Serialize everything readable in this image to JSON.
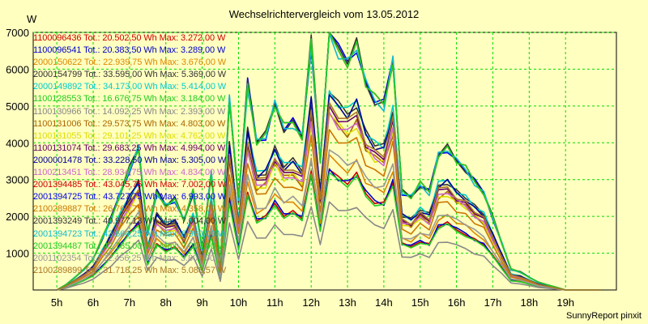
{
  "chart_data": {
    "type": "line",
    "title": "Wechselrichtervergleich vom 13.05.2012",
    "ylabel": "W",
    "xlabel": "",
    "footer": "SunnyReport pinxit",
    "ylim": [
      0,
      7000
    ],
    "y_ticks": [
      1000,
      2000,
      3000,
      4000,
      5000,
      6000,
      7000
    ],
    "y_tick_labels": [
      "1000",
      "2000",
      "3000",
      "4000",
      "5000",
      "6000",
      "7000"
    ],
    "x_range_hours": [
      4.35,
      20.4
    ],
    "x_tick_hours": [
      5,
      6,
      7,
      8,
      9,
      10,
      11,
      12,
      13,
      14,
      15,
      16,
      17,
      18,
      19
    ],
    "x_tick_labels": [
      "5h",
      "6h",
      "7h",
      "8h",
      "9h",
      "10h",
      "11h",
      "12h",
      "13h",
      "14h",
      "15h",
      "16h",
      "17h",
      "18h",
      "19h"
    ],
    "grid": true,
    "legend_position": "top-left",
    "x": [
      5.0,
      5.25,
      5.5,
      5.75,
      6.0,
      6.25,
      6.5,
      6.75,
      7.0,
      7.25,
      7.5,
      7.75,
      8.0,
      8.25,
      8.5,
      8.75,
      9.0,
      9.25,
      9.5,
      9.75,
      10.0,
      10.25,
      10.5,
      10.75,
      11.0,
      11.25,
      11.5,
      11.75,
      12.0,
      12.25,
      12.5,
      12.75,
      13.0,
      13.25,
      13.5,
      13.75,
      14.0,
      14.25,
      14.5,
      14.75,
      15.0,
      15.25,
      15.5,
      15.75,
      16.0,
      16.25,
      16.5,
      16.75,
      17.0,
      17.25,
      17.5,
      17.75,
      18.0,
      18.25,
      18.5,
      18.75,
      19.0,
      19.25,
      19.5,
      19.75,
      20.0
    ],
    "base_shape": [
      0.0,
      0.02,
      0.05,
      0.08,
      0.12,
      0.2,
      0.28,
      0.38,
      0.47,
      0.55,
      0.22,
      0.38,
      0.33,
      0.35,
      0.27,
      0.38,
      0.16,
      0.46,
      0.1,
      0.74,
      0.35,
      0.8,
      0.58,
      0.6,
      0.72,
      0.63,
      0.65,
      0.6,
      0.96,
      0.5,
      1.0,
      0.93,
      0.89,
      0.95,
      0.8,
      0.74,
      0.72,
      0.9,
      0.38,
      0.36,
      0.41,
      0.38,
      0.53,
      0.55,
      0.5,
      0.47,
      0.42,
      0.38,
      0.28,
      0.18,
      0.08,
      0.07,
      0.05,
      0.03,
      0.02,
      0.01,
      0.0,
      0.0,
      0.0,
      0.0,
      0.0
    ],
    "series": [
      {
        "id": "1100096436",
        "label": "1100096436 Tot.: 20.502,50 Wh Max: 3.272,00 W",
        "color": "#cc0000",
        "max": 3272
      },
      {
        "id": "1100096541",
        "label": "1100096541 Tot.: 20.383,50 Wh Max: 3.289,00 W",
        "color": "#0000cc",
        "max": 3289
      },
      {
        "id": "2000150622",
        "label": "2000150622 Tot.: 22.939,75 Wh Max: 3.676,00 W",
        "color": "#dd8800",
        "max": 3676
      },
      {
        "id": "2000154799",
        "label": "2000154799 Tot.: 33.595,00 Wh Max: 5.369,00 W",
        "color": "#333333",
        "max": 5369
      },
      {
        "id": "2000149892",
        "label": "2000149892 Tot.: 34.173,00 Wh Max: 5.414,00 W",
        "color": "#00cccc",
        "max": 5414
      },
      {
        "id": "1100128553",
        "label": "1100128553 Tot.: 16.676,75 Wh Max: 3.184,00 W",
        "color": "#22cc22",
        "max": 3184
      },
      {
        "id": "1100130966",
        "label": "1100130966 Tot.: 14.092,25 Wh Max: 2.393,00 W",
        "color": "#888888",
        "max": 2393
      },
      {
        "id": "1100131006",
        "label": "1100131006 Tot.: 29.573,75 Wh Max: 4.803,00 W",
        "color": "#aa6600",
        "max": 4803
      },
      {
        "id": "1100131055",
        "label": "1100131055 Tot.: 29.101,25 Wh Max: 4.762,00 W",
        "color": "#dddd00",
        "max": 4762
      },
      {
        "id": "1100131074",
        "label": "1100131074 Tot.: 29.683,25 Wh Max: 4.994,00 W",
        "color": "#660066",
        "max": 4994
      },
      {
        "id": "2000001478",
        "label": "2000001478 Tot.: 33.228,50 Wh Max: 5.305,00 W",
        "color": "#000099",
        "max": 5305
      },
      {
        "id": "1100213451",
        "label": "1100213451 Tot.: 28.934,75 Wh Max: 4.834,00 W",
        "color": "#cc66cc",
        "max": 4834
      },
      {
        "id": "2001394485",
        "label": "2001394485 Tot.: 43.045,75 Wh Max: 7.002,00 W",
        "color": "#cc0000",
        "max": 7002
      },
      {
        "id": "2001394725",
        "label": "2001394725 Tot.: 43.727,75 Wh Max: 6.993,00 W",
        "color": "#0000ee",
        "max": 6993
      },
      {
        "id": "2100289887",
        "label": "2100289887 Tot.: 26.763,75 Wh Max: 4.358,00 W",
        "color": "#cc7700",
        "max": 4358
      },
      {
        "id": "2001393249",
        "label": "2001393249 Tot.: 40.977,13 Wh Max: 7.004,00 W",
        "color": "#333333",
        "max": 7004
      },
      {
        "id": "2001394723",
        "label": "2001394723 Tot.: 43.664,25 Wh Max: 6.960,00 W",
        "color": "#11bbcc",
        "max": 6960
      },
      {
        "id": "2001394487",
        "label": "2001394487 Tot.: 42.785,00 Wh Max: 7.003,00 W",
        "color": "#22cc22",
        "max": 7003
      },
      {
        "id": "2001102354",
        "label": "2001102354 Tot.: 22.456,25 Wh Max: 3.807,00 W",
        "color": "#999999",
        "max": 3807
      },
      {
        "id": "2100289899",
        "label": "2100289899 Tot.: 31.718,25 Wh Max: 5.088,57 W",
        "color": "#aa7722",
        "max": 5089
      }
    ]
  }
}
